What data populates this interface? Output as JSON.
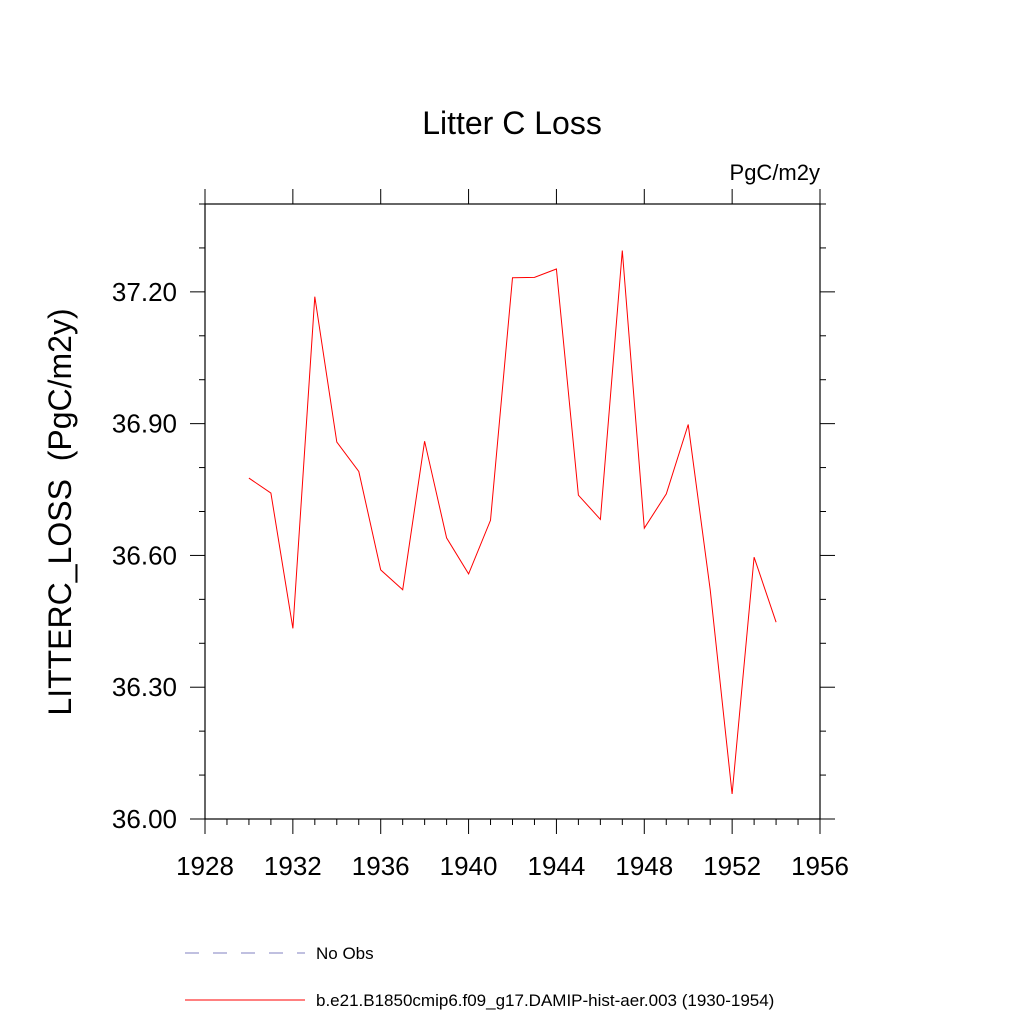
{
  "chart_data": {
    "type": "line",
    "title": "Litter C Loss",
    "units_label": "PgC/m2y",
    "ylabel": "LITTERC_LOSS  (PgC/m2y)",
    "xlabel": "",
    "xlim": [
      1928,
      1956
    ],
    "ylim": [
      36.0,
      37.4
    ],
    "x_ticks": [
      1928,
      1932,
      1936,
      1940,
      1944,
      1948,
      1952,
      1956
    ],
    "x_tick_labels": [
      "1928",
      "1932",
      "1936",
      "1940",
      "1944",
      "1948",
      "1952",
      "1956"
    ],
    "y_ticks": [
      36.0,
      36.3,
      36.6,
      36.9,
      37.2
    ],
    "y_tick_labels": [
      "36.00",
      "36.30",
      "36.60",
      "36.90",
      "37.20"
    ],
    "grid": false,
    "legend_placement": "bottom",
    "series": [
      {
        "name": "b.e21.B1850cmip6.f09_g17.DAMIP-hist-aer.003 (1930-1954)",
        "color": "#ff0000",
        "style": "solid",
        "x": [
          1930,
          1931,
          1932,
          1933,
          1934,
          1935,
          1936,
          1937,
          1938,
          1939,
          1940,
          1941,
          1942,
          1943,
          1944,
          1945,
          1946,
          1947,
          1948,
          1949,
          1950,
          1951,
          1952,
          1953,
          1954
        ],
        "y": [
          36.776,
          36.742,
          36.434,
          37.189,
          36.858,
          36.791,
          36.567,
          36.522,
          36.86,
          36.64,
          36.558,
          36.68,
          37.232,
          37.233,
          37.252,
          36.737,
          36.682,
          37.294,
          36.662,
          36.74,
          36.898,
          36.522,
          36.057,
          36.596,
          36.448
        ]
      }
    ],
    "legend": [
      {
        "label": "No Obs",
        "color": "#8080c0",
        "style": "dashed"
      },
      {
        "label": "b.e21.B1850cmip6.f09_g17.DAMIP-hist-aer.003 (1930-1954)",
        "color": "#ff0000",
        "style": "solid"
      }
    ]
  }
}
